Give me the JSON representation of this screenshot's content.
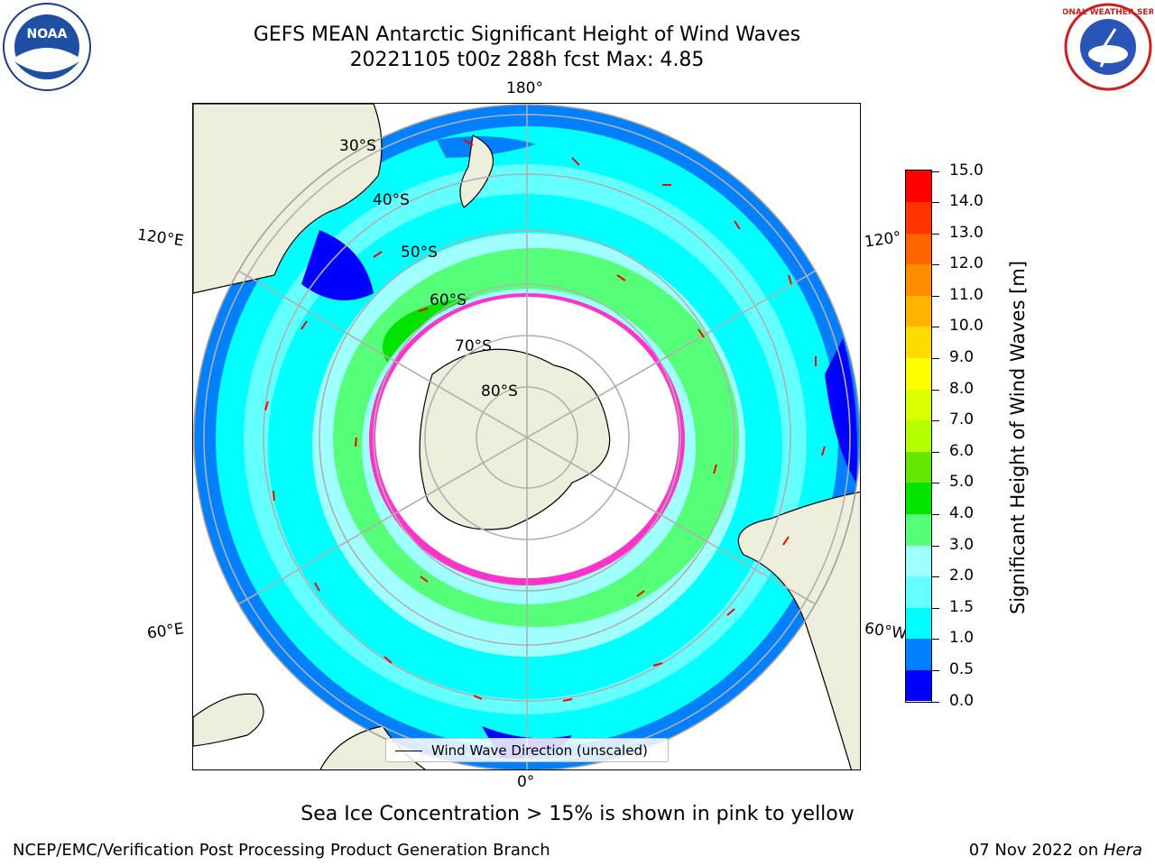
{
  "header": {
    "title_line1": "GEFS MEAN Antarctic Significant Height of Wind Waves",
    "title_line2": "20221105 t00z 288h fcst   Max: 4.85"
  },
  "logos": {
    "noaa_text": "NOAA",
    "nws_text": "NATIONAL WEATHER SERVICE"
  },
  "map": {
    "projection": "south-polar-stereographic",
    "lon_labels": {
      "top": "180°",
      "bottom": "0°",
      "left_upper": "120°E",
      "left_lower": "60°E",
      "right_upper": "120°",
      "right_lower": "60°W"
    },
    "lat_labels": [
      "30°S",
      "40°S",
      "50°S",
      "60°S",
      "70°S",
      "80°S"
    ],
    "legend_label": "Wind Wave Direction (unscaled)",
    "colors": {
      "land": "#eeeedc",
      "ice_edge": "#ff33cc",
      "arrows": "#ff0000",
      "grid": "#b0b0b0"
    }
  },
  "colorbar": {
    "label": "Significant Height of Wind Waves [m]",
    "ticks": [
      "0.0",
      "0.5",
      "1.0",
      "1.5",
      "2.0",
      "3.0",
      "4.0",
      "5.0",
      "6.0",
      "7.0",
      "8.0",
      "9.0",
      "10.0",
      "11.0",
      "12.0",
      "13.0",
      "14.0",
      "15.0"
    ],
    "colors": [
      "#0000ff",
      "#0080ff",
      "#00ffff",
      "#64ffff",
      "#a0ffff",
      "#55ff77",
      "#00e400",
      "#64e600",
      "#b4ff00",
      "#dcff00",
      "#ffff00",
      "#ffdc00",
      "#ffb400",
      "#ff8c00",
      "#ff6400",
      "#ff3200",
      "#ff0000"
    ]
  },
  "note": "Sea Ice Concentration > 15% is shown in pink to yellow",
  "footer": {
    "left": "NCEP/EMC/Verification Post Processing Product Generation Branch",
    "right_date": "07 Nov 2022 on ",
    "right_machine": "Hera"
  }
}
